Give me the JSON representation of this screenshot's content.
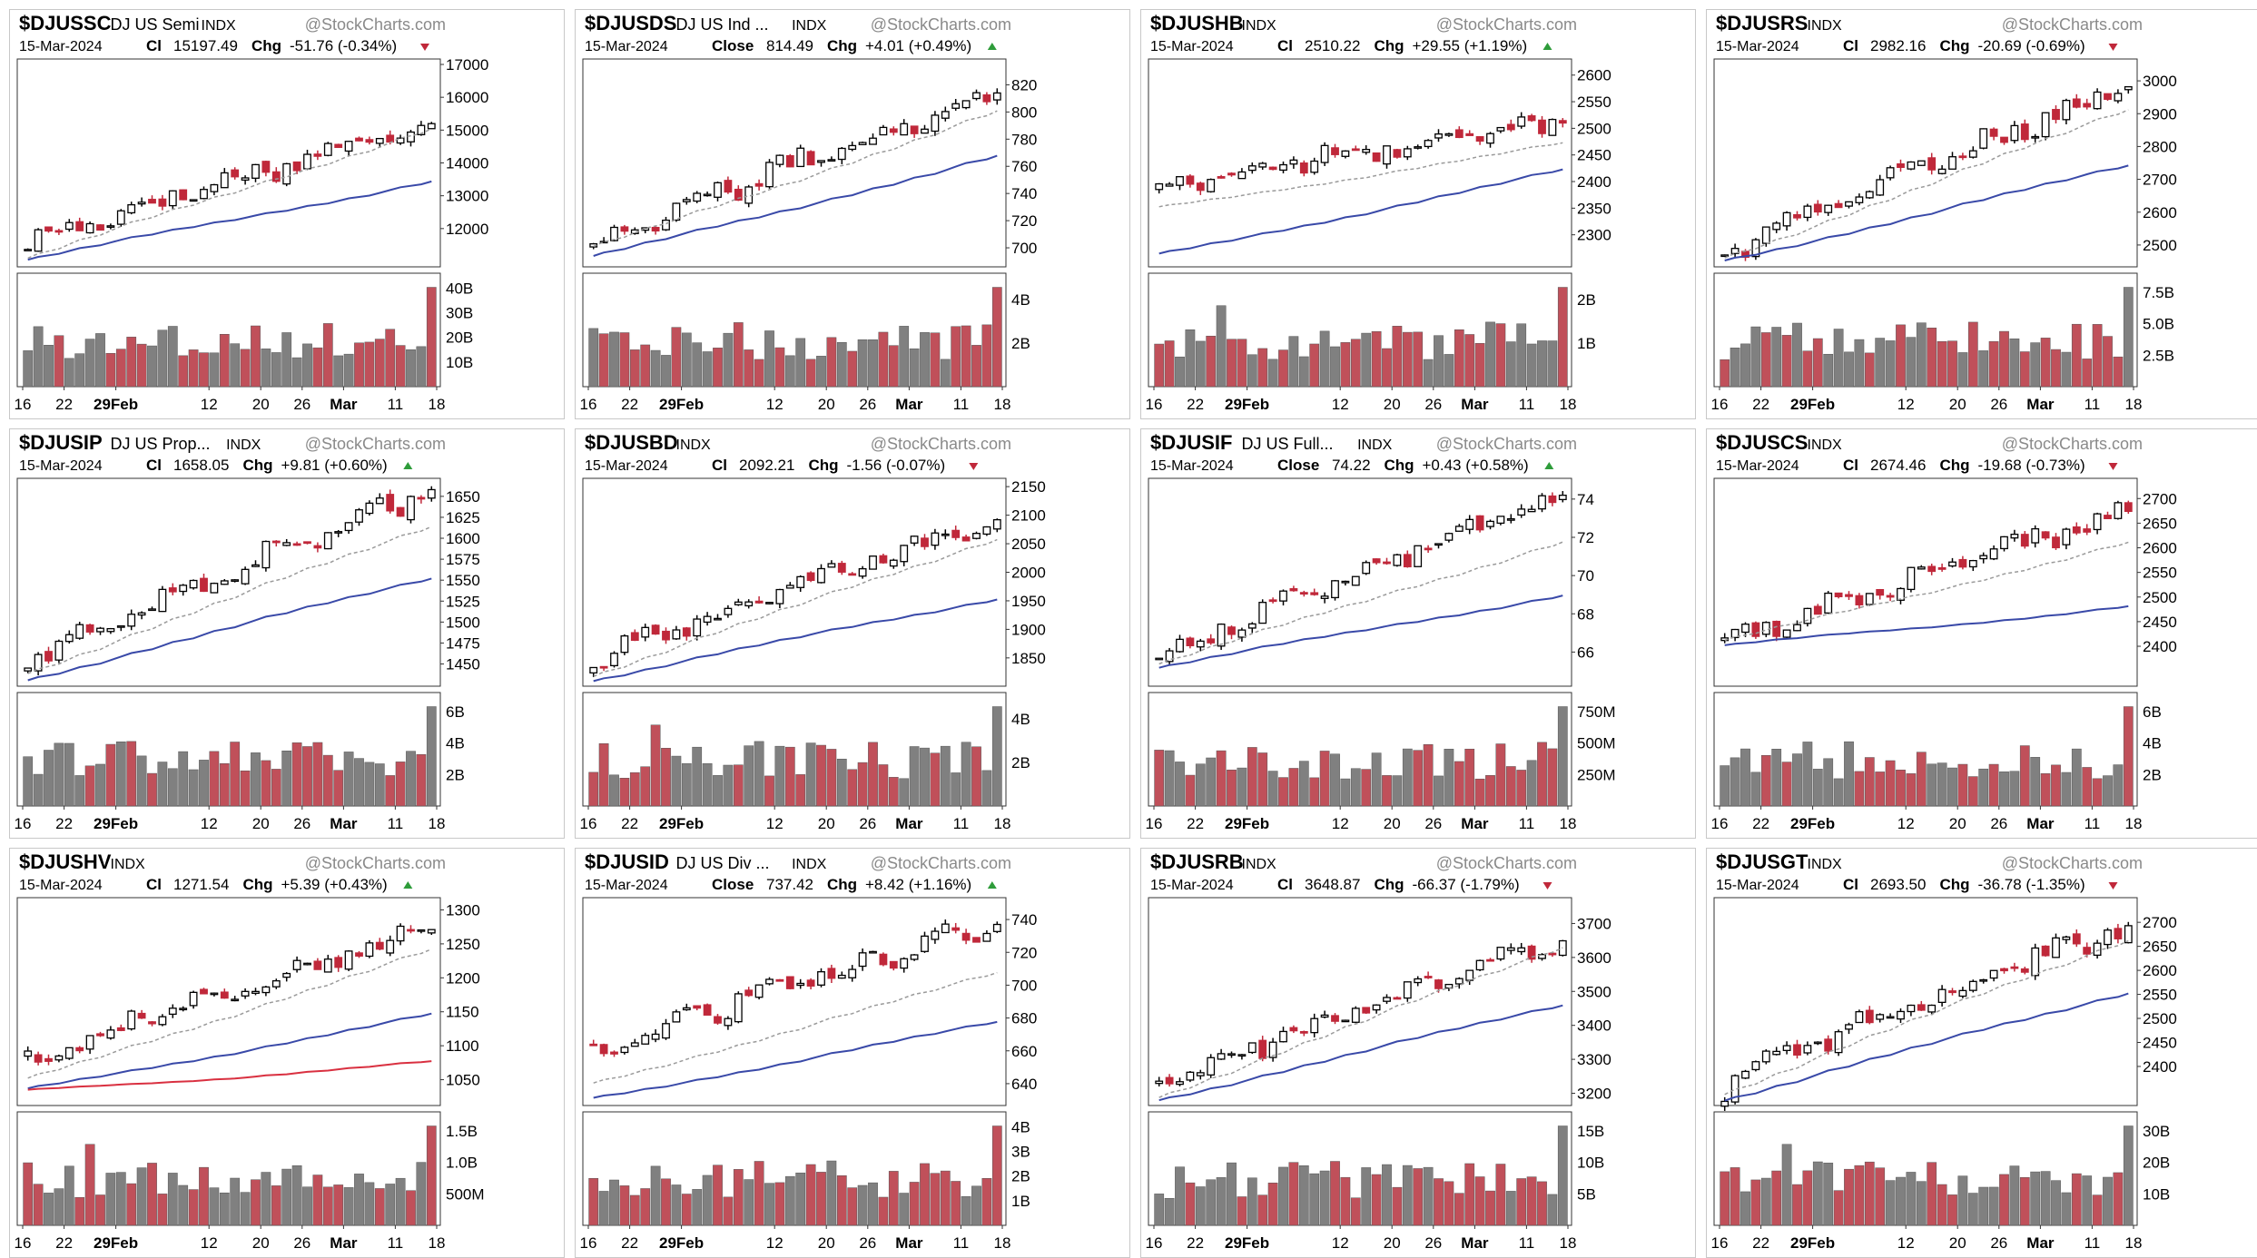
{
  "watermark": "@StockCharts.com",
  "date": "15-Mar-2024",
  "colors": {
    "up": "#000000",
    "down": "#c0283a",
    "ma_fast": "#9a9a9a",
    "ma_slow": "#3949a8",
    "ma_red": "#d93040",
    "vol_up": "#808080",
    "vol_down": "#c0505a",
    "up_arrow": "#2e9c3a",
    "down_arrow": "#c0283a"
  },
  "x_ticks": [
    "16",
    "22",
    "29Feb",
    "12",
    "20",
    "26",
    "Mar",
    "11",
    "18"
  ],
  "chart_data": [
    {
      "type": "candlestick",
      "symbol": "$DJUSSC",
      "name": "DJ US Semi",
      "exchange": "INDX",
      "close_label": "Cl",
      "close": "15197.49",
      "chg": "-51.76 (-0.34%)",
      "dir": "down",
      "ylim": [
        11000,
        17000
      ],
      "yticks": [
        "12000",
        "13000",
        "14000",
        "15000",
        "16000",
        "17000"
      ],
      "vol_ticks": [
        "10B",
        "20B",
        "30B",
        "40B"
      ],
      "start": 11520,
      "end": 15197,
      "ma_slow_start": 11050,
      "ma_slow_end": 13450,
      "ma_fast_start": 11100,
      "ma_fast_end": 15050
    },
    {
      "type": "candlestick",
      "symbol": "$DJUSDS",
      "name": "DJ US Ind ...",
      "exchange": "INDX",
      "close_label": "Close",
      "close": "814.49",
      "chg": "+4.01 (+0.49%)",
      "dir": "up",
      "ylim": [
        690,
        835
      ],
      "yticks": [
        "700",
        "720",
        "740",
        "760",
        "780",
        "800",
        "820"
      ],
      "vol_ticks": [
        "2B",
        "4B"
      ],
      "start": 702,
      "end": 814,
      "ma_slow_start": 693,
      "ma_slow_end": 767,
      "ma_fast_start": 700,
      "ma_fast_end": 800
    },
    {
      "type": "candlestick",
      "symbol": "$DJUSHB",
      "name": "",
      "exchange": "INDX",
      "close_label": "Cl",
      "close": "2510.22",
      "chg": "+29.55 (+1.19%)",
      "dir": "up",
      "ylim": [
        2250,
        2620
      ],
      "yticks": [
        "2300",
        "2350",
        "2400",
        "2450",
        "2500",
        "2550",
        "2600"
      ],
      "vol_ticks": [
        "1B",
        "2B"
      ],
      "start": 2390,
      "end": 2510,
      "ma_slow_start": 2262,
      "ma_slow_end": 2420,
      "ma_fast_start": 2350,
      "ma_fast_end": 2470
    },
    {
      "type": "candlestick",
      "symbol": "$DJUSRS",
      "name": "",
      "exchange": "INDX",
      "close_label": "Cl",
      "close": "2982.16",
      "chg": "-20.69 (-0.69%)",
      "dir": "down",
      "ylim": [
        2450,
        3050
      ],
      "yticks": [
        "2500",
        "2600",
        "2700",
        "2800",
        "2900",
        "3000"
      ],
      "vol_ticks": [
        "2.5B",
        "5.0B",
        "7.5B"
      ],
      "start": 2470,
      "end": 2982,
      "ma_slow_start": 2452,
      "ma_slow_end": 2740,
      "ma_fast_start": 2460,
      "ma_fast_end": 2910
    },
    {
      "type": "candlestick",
      "symbol": "$DJUSIP",
      "name": "DJ US Prop...",
      "exchange": "INDX",
      "close_label": "Cl",
      "close": "1658.05",
      "chg": "+9.81 (+0.60%)",
      "dir": "up",
      "ylim": [
        1430,
        1665
      ],
      "yticks": [
        "1450",
        "1475",
        "1500",
        "1525",
        "1550",
        "1575",
        "1600",
        "1625",
        "1650"
      ],
      "vol_ticks": [
        "2B",
        "4B",
        "6B"
      ],
      "start": 1450,
      "end": 1658,
      "ma_slow_start": 1432,
      "ma_slow_end": 1553,
      "ma_fast_start": 1440,
      "ma_fast_end": 1615
    },
    {
      "type": "candlestick",
      "symbol": "$DJUSBD",
      "name": "",
      "exchange": "INDX",
      "close_label": "Cl",
      "close": "2092.21",
      "chg": "-1.56 (-0.07%)",
      "dir": "down",
      "ylim": [
        1810,
        2155
      ],
      "yticks": [
        "1850",
        "1900",
        "1950",
        "2000",
        "2050",
        "2100",
        "2150"
      ],
      "vol_ticks": [
        "2B",
        "4B"
      ],
      "start": 1840,
      "end": 2092,
      "ma_slow_start": 1812,
      "ma_slow_end": 1955,
      "ma_fast_start": 1820,
      "ma_fast_end": 2060
    },
    {
      "type": "candlestick",
      "symbol": "$DJUSIF",
      "name": "DJ US Full...",
      "exchange": "INDX",
      "close_label": "Close",
      "close": "74.22",
      "chg": "+0.43 (+0.58%)",
      "dir": "up",
      "ylim": [
        64.5,
        74.8
      ],
      "yticks": [
        "66",
        "68",
        "70",
        "72",
        "74"
      ],
      "vol_ticks": [
        "250M",
        "500M",
        "750M"
      ],
      "start": 65.6,
      "end": 74.2,
      "ma_slow_start": 65.2,
      "ma_slow_end": 69.0,
      "ma_fast_start": 65.4,
      "ma_fast_end": 71.8
    },
    {
      "type": "candlestick",
      "symbol": "$DJUSCS",
      "name": "",
      "exchange": "INDX",
      "close_label": "Cl",
      "close": "2674.46",
      "chg": "-19.68 (-0.73%)",
      "dir": "down",
      "ylim": [
        2330,
        2730
      ],
      "yticks": [
        "2400",
        "2450",
        "2500",
        "2550",
        "2600",
        "2650",
        "2700"
      ],
      "vol_ticks": [
        "2B",
        "4B",
        "6B"
      ],
      "start": 2400,
      "end": 2674,
      "ma_slow_start": 2400,
      "ma_slow_end": 2480,
      "ma_fast_start": 2410,
      "ma_fast_end": 2610
    },
    {
      "type": "candlestick",
      "symbol": "$DJUSHV",
      "name": "",
      "exchange": "INDX",
      "close_label": "Cl",
      "close": "1271.54",
      "chg": "+5.39 (+0.43%)",
      "dir": "up",
      "ylim": [
        1020,
        1310
      ],
      "yticks": [
        "1050",
        "1100",
        "1150",
        "1200",
        "1250",
        "1300"
      ],
      "vol_ticks": [
        "500M",
        "1.0B",
        "1.5B"
      ],
      "start": 1075,
      "end": 1271,
      "ma_slow_start": 1035,
      "ma_slow_end": 1145,
      "ma_fast_start": 1050,
      "ma_fast_end": 1240,
      "ma_red_start": 1033,
      "ma_red_end": 1075
    },
    {
      "type": "candlestick",
      "symbol": "$DJUSID",
      "name": "DJ US Div ...",
      "exchange": "INDX",
      "close_label": "Close",
      "close": "737.42",
      "chg": "+8.42 (+1.16%)",
      "dir": "up",
      "ylim": [
        630,
        750
      ],
      "yticks": [
        "640",
        "660",
        "680",
        "700",
        "720",
        "740"
      ],
      "vol_ticks": [
        "1B",
        "2B",
        "3B",
        "4B"
      ],
      "start": 658,
      "end": 737,
      "ma_slow_start": 631,
      "ma_slow_end": 677,
      "ma_fast_start": 640,
      "ma_fast_end": 707
    },
    {
      "type": "candlestick",
      "symbol": "$DJUSRB",
      "name": "",
      "exchange": "INDX",
      "close_label": "Cl",
      "close": "3648.87",
      "chg": "-66.37 (-1.79%)",
      "dir": "down",
      "ylim": [
        3180,
        3760
      ],
      "yticks": [
        "3200",
        "3300",
        "3400",
        "3500",
        "3600",
        "3700"
      ],
      "vol_ticks": [
        "5B",
        "10B",
        "15B"
      ],
      "start": 3220,
      "end": 3649,
      "ma_slow_start": 3182,
      "ma_slow_end": 3460,
      "ma_fast_start": 3190,
      "ma_fast_end": 3630
    },
    {
      "type": "candlestick",
      "symbol": "$DJUSGT",
      "name": "",
      "exchange": "INDX",
      "close_label": "Cl",
      "close": "2693.50",
      "chg": "-36.78 (-1.35%)",
      "dir": "down",
      "ylim": [
        2330,
        2740
      ],
      "yticks": [
        "2400",
        "2450",
        "2500",
        "2550",
        "2600",
        "2650",
        "2700"
      ],
      "vol_ticks": [
        "10B",
        "20B",
        "30B"
      ],
      "start": 2360,
      "end": 2693,
      "ma_slow_start": 2332,
      "ma_slow_end": 2555,
      "ma_fast_start": 2345,
      "ma_fast_end": 2665
    }
  ]
}
